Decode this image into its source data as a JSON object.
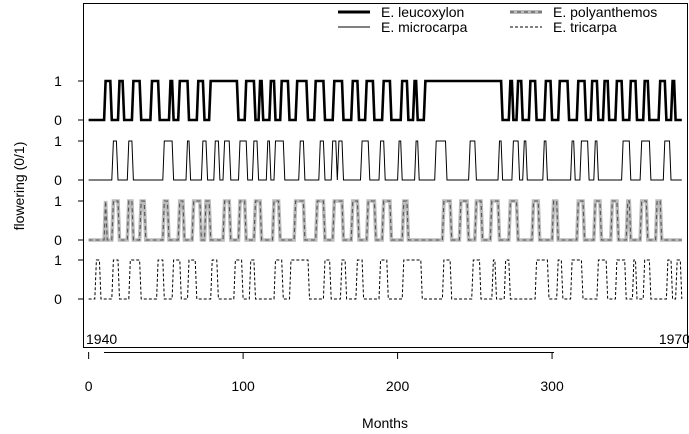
{
  "chart_data": {
    "type": "line",
    "title": "",
    "xlabel": "Months",
    "ylabel": "flowering (0/1)",
    "xlim": [
      -3,
      388
    ],
    "x_ticks": [
      0,
      100,
      200,
      300
    ],
    "y_tick_labels": [
      "0",
      "1"
    ],
    "legend_position": "top-right",
    "annotations": [
      {
        "text": "1940",
        "anchor": "bottom-left"
      },
      {
        "text": "1970",
        "anchor": "bottom-right"
      }
    ],
    "series": [
      {
        "name": "E. leucoxylon",
        "color": "#000000",
        "style": "solid-thick",
        "flowering_intervals": [
          [
            10,
            15
          ],
          [
            19,
            23
          ],
          [
            28,
            34
          ],
          [
            40,
            46
          ],
          [
            52,
            55
          ],
          [
            58,
            65
          ],
          [
            70,
            75
          ],
          [
            78,
            97
          ],
          [
            101,
            108
          ],
          [
            110,
            113
          ],
          [
            117,
            121
          ],
          [
            124,
            130
          ],
          [
            134,
            142
          ],
          [
            146,
            153
          ],
          [
            158,
            165
          ],
          [
            170,
            175
          ],
          [
            179,
            185
          ],
          [
            190,
            196
          ],
          [
            202,
            207
          ],
          [
            210,
            213
          ],
          [
            217,
            268
          ],
          [
            272,
            275
          ],
          [
            277,
            281
          ],
          [
            285,
            290
          ],
          [
            295,
            300
          ],
          [
            304,
            311
          ],
          [
            316,
            322
          ],
          [
            325,
            330
          ],
          [
            333,
            337
          ],
          [
            341,
            346
          ],
          [
            350,
            355
          ],
          [
            359,
            363
          ],
          [
            369,
            374
          ],
          [
            377,
            380
          ]
        ]
      },
      {
        "name": "E. microcarpa",
        "color": "#000000",
        "style": "solid-thin",
        "flowering_intervals": [
          [
            15,
            19
          ],
          [
            25,
            29
          ],
          [
            48,
            55
          ],
          [
            63,
            66
          ],
          [
            73,
            77
          ],
          [
            81,
            85
          ],
          [
            87,
            92
          ],
          [
            97,
            103
          ],
          [
            106,
            110
          ],
          [
            115,
            118
          ],
          [
            120,
            127
          ],
          [
            136,
            140
          ],
          [
            149,
            153
          ],
          [
            157,
            161
          ],
          [
            161,
            165
          ],
          [
            176,
            182
          ],
          [
            188,
            192
          ],
          [
            200,
            203
          ],
          [
            211,
            214
          ],
          [
            224,
            232
          ],
          [
            246,
            251
          ],
          [
            265,
            268
          ],
          [
            274,
            279
          ],
          [
            281,
            284
          ],
          [
            294,
            297
          ],
          [
            312,
            315
          ],
          [
            318,
            324
          ],
          [
            327,
            330
          ],
          [
            345,
            351
          ],
          [
            357,
            364
          ],
          [
            372,
            377
          ]
        ]
      },
      {
        "name": "E. polyanthemos",
        "color": "#bbbbbb",
        "style": "dashed-grey-thick",
        "flowering_intervals": [
          [
            10,
            12
          ],
          [
            15,
            20
          ],
          [
            25,
            29
          ],
          [
            33,
            37
          ],
          [
            48,
            52
          ],
          [
            58,
            62
          ],
          [
            67,
            73
          ],
          [
            75,
            79
          ],
          [
            87,
            92
          ],
          [
            97,
            102
          ],
          [
            107,
            112
          ],
          [
            119,
            124
          ],
          [
            133,
            140
          ],
          [
            147,
            153
          ],
          [
            158,
            165
          ],
          [
            170,
            175
          ],
          [
            180,
            186
          ],
          [
            190,
            196
          ],
          [
            203,
            207
          ],
          [
            229,
            235
          ],
          [
            240,
            246
          ],
          [
            250,
            255
          ],
          [
            260,
            266
          ],
          [
            272,
            278
          ],
          [
            287,
            292
          ],
          [
            300,
            304
          ],
          [
            316,
            321
          ],
          [
            327,
            332
          ],
          [
            338,
            343
          ],
          [
            348,
            351
          ],
          [
            357,
            362
          ],
          [
            367,
            371
          ]
        ]
      },
      {
        "name": "E. tricarpa",
        "color": "#000000",
        "style": "dashed-thin",
        "flowering_intervals": [
          [
            4,
            8
          ],
          [
            15,
            20
          ],
          [
            26,
            34
          ],
          [
            44,
            49
          ],
          [
            54,
            60
          ],
          [
            64,
            70
          ],
          [
            79,
            84
          ],
          [
            94,
            100
          ],
          [
            104,
            108
          ],
          [
            120,
            126
          ],
          [
            130,
            143
          ],
          [
            152,
            157
          ],
          [
            163,
            167
          ],
          [
            173,
            178
          ],
          [
            188,
            194
          ],
          [
            203,
            216
          ],
          [
            229,
            235
          ],
          [
            248,
            254
          ],
          [
            261,
            264
          ],
          [
            269,
            273
          ],
          [
            289,
            298
          ],
          [
            303,
            307
          ],
          [
            312,
            320
          ],
          [
            329,
            336
          ],
          [
            341,
            348
          ],
          [
            352,
            355
          ],
          [
            359,
            364
          ],
          [
            374,
            378
          ],
          [
            380,
            384
          ]
        ]
      }
    ]
  }
}
